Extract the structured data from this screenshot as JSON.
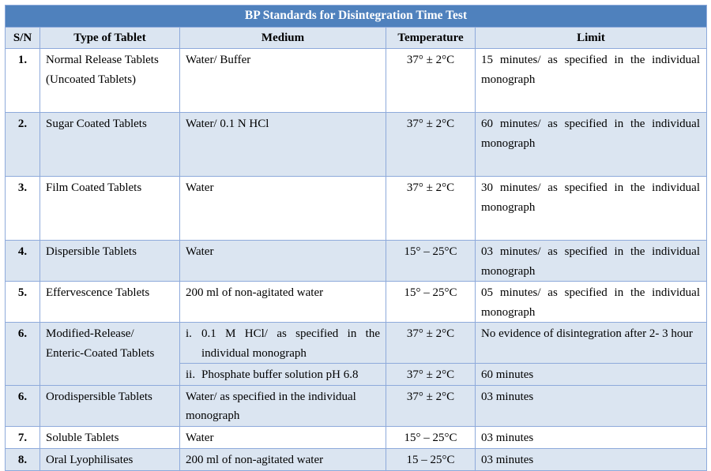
{
  "title": "BP Standards for Disintegration Time Test",
  "headers": {
    "sn": "S/N",
    "type": "Type of Tablet",
    "medium": "Medium",
    "temperature": "Temperature",
    "limit": "Limit"
  },
  "rows": [
    {
      "sn": "1.",
      "type": "Normal Release Tablets (Uncoated Tablets)",
      "medium": "Water/ Buffer",
      "temperature": "37° ± 2°C",
      "limit": "15 minutes/ as specified in the individual monograph"
    },
    {
      "sn": "2.",
      "type": "Sugar Coated Tablets",
      "medium": "Water/ 0.1 N HCl",
      "temperature": "37° ± 2°C",
      "limit": "60 minutes/ as specified in the individual monograph"
    },
    {
      "sn": "3.",
      "type": "Film Coated Tablets",
      "medium": "Water",
      "temperature": "37° ± 2°C",
      "limit": "30 minutes/ as specified in the individual monograph"
    },
    {
      "sn": "4.",
      "type": "Dispersible Tablets",
      "medium": "Water",
      "temperature": "15° – 25°C",
      "limit": "03 minutes/ as specified in the individual monograph"
    },
    {
      "sn": "5.",
      "type": "Effervescence Tablets",
      "medium": "200 ml of non-agitated water",
      "temperature": "15° – 25°C",
      "limit": "05 minutes/ as specified in the individual monograph"
    },
    {
      "sn": "6.",
      "type": "Modified-Release/ Enteric-Coated Tablets",
      "sub": [
        {
          "num": "i.",
          "medium": "0.1 M HCl/ as specified in the individual monograph",
          "temperature": "37° ± 2°C",
          "limit": "No evidence of disintegration after 2- 3 hour"
        },
        {
          "num": "ii.",
          "medium": "Phosphate buffer solution pH 6.8",
          "temperature": "37° ± 2°C",
          "limit": "60 minutes"
        }
      ]
    },
    {
      "sn": "6.",
      "type": "Orodispersible Tablets",
      "medium": "Water/ as specified in the individual monograph",
      "temperature": "37° ± 2°C",
      "limit": "03 minutes"
    },
    {
      "sn": "7.",
      "type": "Soluble Tablets",
      "medium": "Water",
      "temperature": "15° – 25°C",
      "limit": "03 minutes"
    },
    {
      "sn": "8.",
      "type": "Oral Lyophilisates",
      "medium": "200 ml of non-agitated water",
      "temperature": "15 – 25°C",
      "limit": "03 minutes"
    }
  ]
}
